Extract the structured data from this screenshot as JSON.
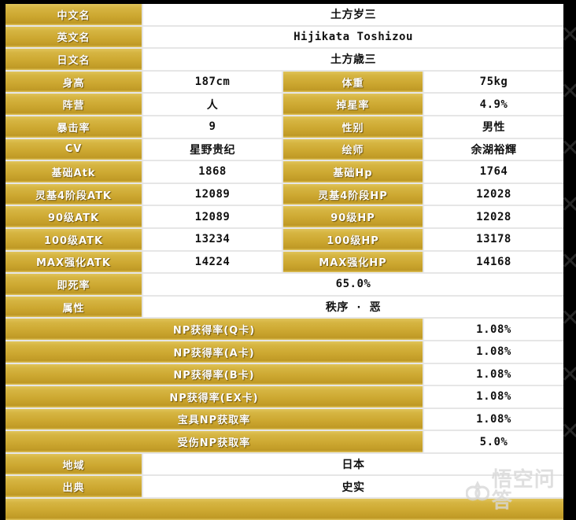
{
  "page": {
    "background": "#000000"
  },
  "colors": {
    "gold_top": "#e0c45a",
    "gold_mid": "#cda831",
    "gold_dark": "#bd9724",
    "row_gap": "#e6e6e6",
    "value_text": "#111111",
    "label_text": "#ffffff"
  },
  "table": {
    "rows": [
      {
        "type": "wide",
        "label": "中文名",
        "value": "土方岁三"
      },
      {
        "type": "wide",
        "label": "英文名",
        "value": "Hijikata Toshizou"
      },
      {
        "type": "wide",
        "label": "日文名",
        "value": "土方歳三"
      },
      {
        "type": "pair",
        "label1": "身高",
        "value1": "187cm",
        "label2": "体重",
        "value2": "75kg"
      },
      {
        "type": "pair",
        "label1": "阵营",
        "value1": "人",
        "label2": "掉星率",
        "value2": "4.9%"
      },
      {
        "type": "pair",
        "label1": "暴击率",
        "value1": "9",
        "label2": "性别",
        "value2": "男性"
      },
      {
        "type": "pair",
        "label1": "CV",
        "value1": "星野贵纪",
        "label2": "绘师",
        "value2": "余湖裕輝"
      },
      {
        "type": "pair",
        "label1": "基础Atk",
        "value1": "1868",
        "label2": "基础Hp",
        "value2": "1764"
      },
      {
        "type": "pair",
        "label1": "灵基4阶段ATK",
        "value1": "12089",
        "label2": "灵基4阶段HP",
        "value2": "12028"
      },
      {
        "type": "pair",
        "label1": "90级ATK",
        "value1": "12089",
        "label2": "90级HP",
        "value2": "12028"
      },
      {
        "type": "pair",
        "label1": "100级ATK",
        "value1": "13234",
        "label2": "100级HP",
        "value2": "13178"
      },
      {
        "type": "pair",
        "label1": "MAX强化ATK",
        "value1": "14224",
        "label2": "MAX强化HP",
        "value2": "14168"
      },
      {
        "type": "wide",
        "label": "即死率",
        "value": "65.0%"
      },
      {
        "type": "wide",
        "label": "属性",
        "value": "秩序 · 恶"
      },
      {
        "type": "np",
        "label": "NP获得率(Q卡)",
        "value": "1.08%"
      },
      {
        "type": "np",
        "label": "NP获得率(A卡)",
        "value": "1.08%"
      },
      {
        "type": "np",
        "label": "NP获得率(B卡)",
        "value": "1.08%"
      },
      {
        "type": "np",
        "label": "NP获得率(EX卡)",
        "value": "1.08%"
      },
      {
        "type": "np",
        "label": "宝具NP获取率",
        "value": "1.08%"
      },
      {
        "type": "np",
        "label": "受伤NP获取率",
        "value": "5.0%"
      },
      {
        "type": "wide",
        "label": "地域",
        "value": "日本"
      },
      {
        "type": "wide",
        "label": "出典",
        "value": "史实"
      },
      {
        "type": "strip"
      }
    ]
  },
  "decor": {
    "x_mark_glyph": "✕",
    "x_mark_count": 8
  },
  "watermark": {
    "icon": "monkey-logo",
    "text": "悟空问答"
  }
}
